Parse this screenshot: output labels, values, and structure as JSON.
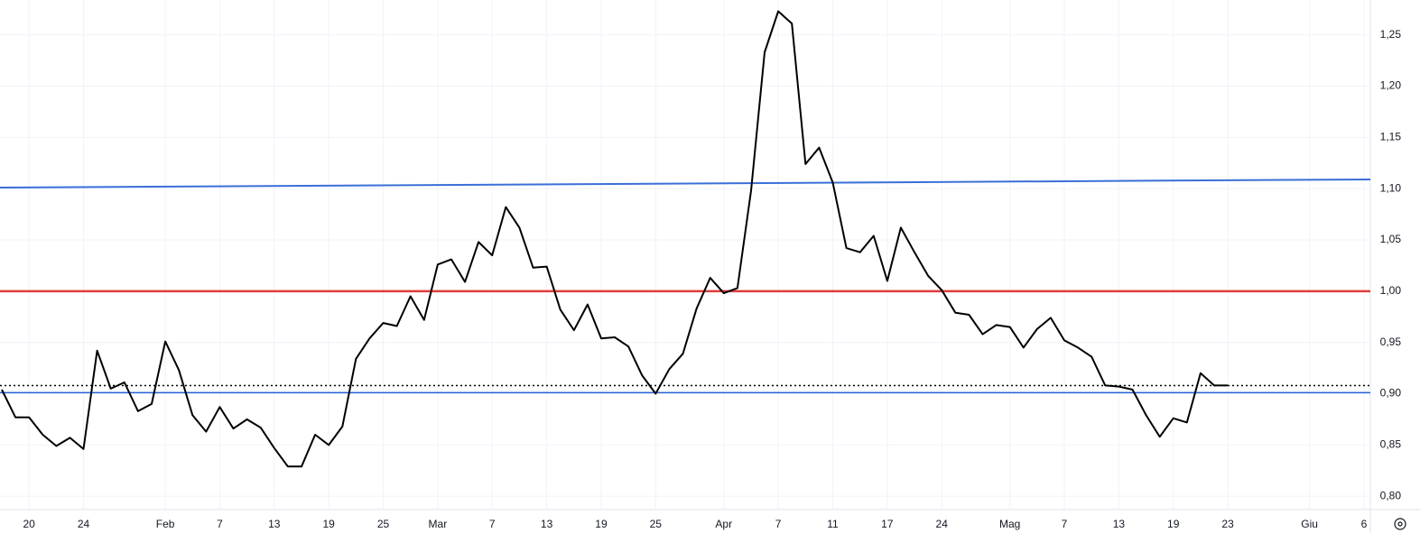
{
  "chart_data": {
    "type": "line",
    "categories": [
      null,
      null,
      "20",
      null,
      null,
      null,
      "24",
      null,
      null,
      null,
      null,
      null,
      "Feb",
      null,
      null,
      null,
      "7",
      null,
      null,
      null,
      "13",
      null,
      null,
      null,
      "19",
      null,
      null,
      null,
      "25",
      null,
      null,
      null,
      "Mar",
      null,
      null,
      null,
      "7",
      null,
      null,
      null,
      "13",
      null,
      null,
      null,
      "19",
      null,
      null,
      null,
      "25",
      null,
      null,
      null,
      null,
      "Apr",
      null,
      null,
      null,
      "7",
      null,
      null,
      null,
      "11",
      null,
      null,
      null,
      "17",
      null,
      null,
      null,
      "24",
      null,
      null,
      null,
      null,
      "Mag",
      null,
      null,
      null,
      "7",
      null,
      null,
      null,
      "13",
      null,
      null,
      null,
      "19",
      null,
      null,
      null,
      "23",
      null,
      null,
      null,
      null,
      null,
      "Giu",
      null,
      null,
      null,
      "6"
    ],
    "series": [
      {
        "color": "#000000",
        "values": [
          0.904,
          0.877,
          0.877,
          0.86,
          0.849,
          0.857,
          0.846,
          0.942,
          0.905,
          0.911,
          0.883,
          0.89,
          0.951,
          0.923,
          0.879,
          0.863,
          0.887,
          0.866,
          0.875,
          0.867,
          0.847,
          0.829,
          0.829,
          0.86,
          0.85,
          0.868,
          0.934,
          0.954,
          0.969,
          0.966,
          0.995,
          0.972,
          1.026,
          1.031,
          1.009,
          1.048,
          1.035,
          1.082,
          1.062,
          1.023,
          1.024,
          0.982,
          0.962,
          0.987,
          0.954,
          0.955,
          0.946,
          0.918,
          0.9,
          0.924,
          0.939,
          0.983,
          1.013,
          0.998,
          1.003,
          1.098,
          1.233,
          1.273,
          1.261,
          1.124,
          1.14,
          1.106,
          1.042,
          1.038,
          1.054,
          1.01,
          1.062,
          1.038,
          1.015,
          1.001,
          0.979,
          0.977,
          0.958,
          0.967,
          0.965,
          0.945,
          0.963,
          0.974,
          0.952,
          0.945,
          0.936,
          0.908,
          0.907,
          0.904,
          0.879,
          0.858,
          0.876,
          0.872,
          0.92,
          0.908,
          0.908,
          null,
          null,
          null,
          null,
          null,
          null,
          null,
          null,
          null,
          null
        ]
      }
    ],
    "hlines": [
      {
        "value": 1.0,
        "color": "#e03c3c",
        "width": 2.5
      },
      {
        "value": 0.901,
        "color": "#2962d9",
        "width": 1.5
      },
      {
        "value": 0.908,
        "color": "#000000",
        "width": 1.5,
        "dotted": true
      }
    ],
    "trendline": {
      "values": [
        1.101,
        1.109
      ],
      "color": "#3a6fd8"
    },
    "ylim": [
      0.787,
      1.284
    ],
    "yticks": [
      {
        "value": 0.8,
        "label": "0,80"
      },
      {
        "value": 0.85,
        "label": "0,85"
      },
      {
        "value": 0.9,
        "label": "0,90"
      },
      {
        "value": 0.95,
        "label": "0,95"
      },
      {
        "value": 1.0,
        "label": "1,00"
      },
      {
        "value": 1.05,
        "label": "1,05"
      },
      {
        "value": 1.1,
        "label": "1,10"
      },
      {
        "value": 1.15,
        "label": "1,15"
      },
      {
        "value": 1.2,
        "label": "1,20"
      },
      {
        "value": 1.25,
        "label": "1,25"
      }
    ],
    "grid": true
  }
}
